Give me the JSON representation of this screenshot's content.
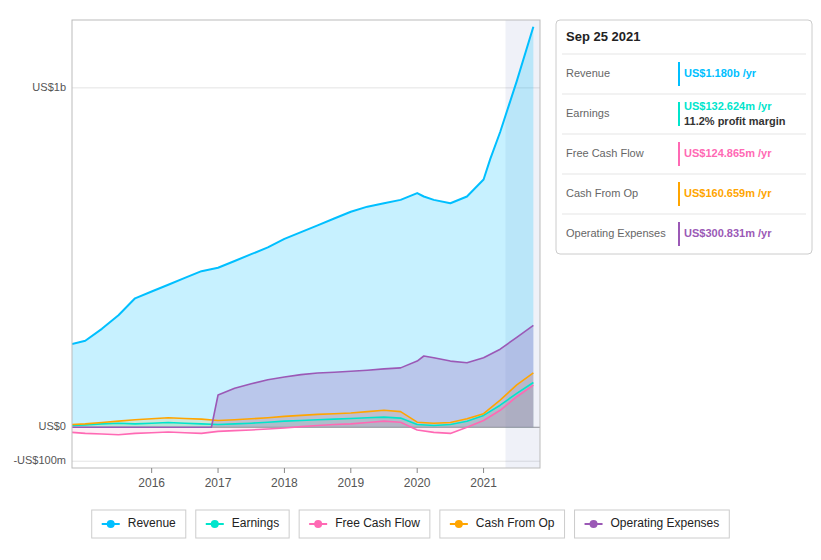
{
  "chart_data": {
    "type": "area",
    "xlim": [
      2014.8,
      2021.85
    ],
    "xticks": [
      2016.0,
      2017.0,
      2018.0,
      2019.0,
      2020.0,
      2021.0
    ],
    "ylim": [
      -120,
      1200
    ],
    "yticks": [
      {
        "value": -100,
        "label": "-US$100m"
      },
      {
        "value": 0,
        "label": "US$0"
      },
      {
        "value": 1000,
        "label": "US$1b"
      }
    ],
    "grid": true,
    "legend": "bottom",
    "highlight_start": 2021.33,
    "series": [
      {
        "name": "Revenue",
        "color": "#00bfff",
        "x": [
          2014.8,
          2015.0,
          2015.25,
          2015.5,
          2015.75,
          2016.0,
          2016.25,
          2016.5,
          2016.75,
          2017.0,
          2017.25,
          2017.5,
          2017.75,
          2018.0,
          2018.25,
          2018.5,
          2018.75,
          2019.0,
          2019.25,
          2019.5,
          2019.75,
          2020.0,
          2020.1,
          2020.25,
          2020.5,
          2020.75,
          2021.0,
          2021.1,
          2021.25,
          2021.5,
          2021.75
        ],
        "values": [
          245,
          255,
          290,
          330,
          380,
          400,
          420,
          440,
          460,
          470,
          490,
          510,
          530,
          555,
          575,
          595,
          615,
          635,
          650,
          660,
          670,
          690,
          680,
          670,
          660,
          680,
          730,
          790,
          870,
          1020,
          1180
        ]
      },
      {
        "name": "Earnings",
        "color": "#00e5cc",
        "x": [
          2014.8,
          2015.0,
          2015.25,
          2015.5,
          2015.75,
          2016.0,
          2016.25,
          2016.5,
          2016.75,
          2017.0,
          2017.25,
          2017.5,
          2017.75,
          2018.0,
          2018.25,
          2018.5,
          2018.75,
          2019.0,
          2019.25,
          2019.5,
          2019.75,
          2020.0,
          2020.25,
          2020.5,
          2020.75,
          2021.0,
          2021.25,
          2021.5,
          2021.75
        ],
        "values": [
          5,
          7,
          10,
          12,
          10,
          12,
          14,
          12,
          10,
          8,
          10,
          12,
          15,
          18,
          20,
          22,
          24,
          26,
          28,
          30,
          27,
          8,
          5,
          8,
          18,
          35,
          65,
          100,
          132
        ]
      },
      {
        "name": "Free Cash Flow",
        "color": "#ff69b4",
        "x": [
          2014.8,
          2015.0,
          2015.25,
          2015.5,
          2015.75,
          2016.0,
          2016.25,
          2016.5,
          2016.75,
          2017.0,
          2017.25,
          2017.5,
          2017.75,
          2018.0,
          2018.25,
          2018.5,
          2018.75,
          2019.0,
          2019.25,
          2019.5,
          2019.75,
          2020.0,
          2020.25,
          2020.5,
          2020.75,
          2021.0,
          2021.25,
          2021.5,
          2021.75
        ],
        "values": [
          -15,
          -18,
          -20,
          -22,
          -18,
          -16,
          -14,
          -16,
          -18,
          -12,
          -10,
          -8,
          -5,
          -2,
          2,
          5,
          8,
          10,
          14,
          18,
          15,
          -8,
          -15,
          -18,
          0,
          20,
          50,
          90,
          124
        ]
      },
      {
        "name": "Cash From Op",
        "color": "#ffa500",
        "x": [
          2014.8,
          2015.0,
          2015.25,
          2015.5,
          2015.75,
          2016.0,
          2016.25,
          2016.5,
          2016.75,
          2017.0,
          2017.25,
          2017.5,
          2017.75,
          2018.0,
          2018.25,
          2018.5,
          2018.75,
          2019.0,
          2019.25,
          2019.5,
          2019.75,
          2020.0,
          2020.25,
          2020.5,
          2020.75,
          2021.0,
          2021.25,
          2021.5,
          2021.75
        ],
        "values": [
          8,
          10,
          14,
          18,
          22,
          25,
          28,
          26,
          24,
          20,
          22,
          25,
          28,
          32,
          35,
          38,
          40,
          42,
          46,
          50,
          46,
          15,
          12,
          14,
          25,
          40,
          80,
          125,
          160
        ]
      },
      {
        "name": "Operating Expenses",
        "color": "#9b59b6",
        "x": [
          2014.8,
          2015.0,
          2015.5,
          2016.0,
          2016.5,
          2016.9,
          2017.0,
          2017.25,
          2017.5,
          2017.75,
          2018.0,
          2018.25,
          2018.5,
          2018.75,
          2019.0,
          2019.25,
          2019.5,
          2019.75,
          2020.0,
          2020.1,
          2020.25,
          2020.5,
          2020.75,
          2021.0,
          2021.25,
          2021.5,
          2021.75
        ],
        "values": [
          0,
          0,
          0,
          0,
          0,
          0,
          95,
          115,
          128,
          140,
          148,
          155,
          160,
          162,
          165,
          168,
          172,
          175,
          195,
          210,
          205,
          195,
          190,
          205,
          230,
          265,
          300
        ]
      }
    ],
    "tooltip": {
      "title": "Sep 25 2021",
      "rows": [
        {
          "label": "Revenue",
          "value": "US$1.180b /yr",
          "color": "#00bfff"
        },
        {
          "label": "Earnings",
          "value": "US$132.624m /yr",
          "color": "#00e5cc",
          "sub": "11.2% profit margin"
        },
        {
          "label": "Free Cash Flow",
          "value": "US$124.865m /yr",
          "color": "#ff69b4"
        },
        {
          "label": "Cash From Op",
          "value": "US$160.659m /yr",
          "color": "#ffa500"
        },
        {
          "label": "Operating Expenses",
          "value": "US$300.831m /yr",
          "color": "#9b59b6"
        }
      ]
    }
  }
}
